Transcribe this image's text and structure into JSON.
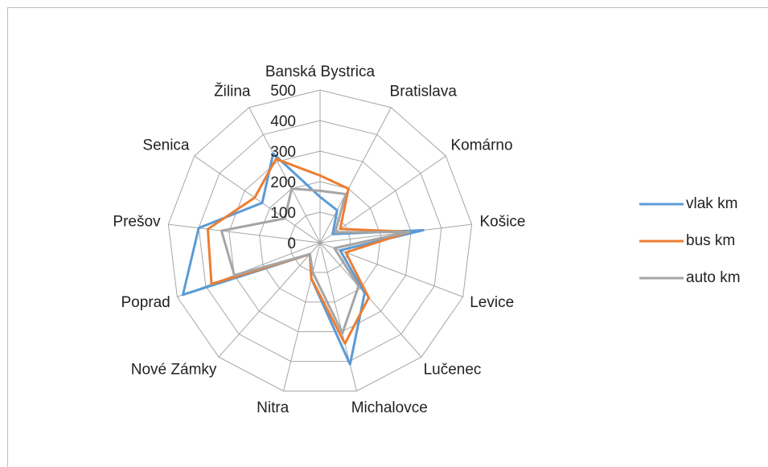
{
  "chart_data": {
    "type": "radar",
    "categories": [
      "Banská Bystrica",
      "Bratislava",
      "Komárno",
      "Košice",
      "Levice",
      "Lučenec",
      "Michalovce",
      "Nitra",
      "Nové Zámky",
      "Poprad",
      "Prešov",
      "Senica",
      "Žilina"
    ],
    "series": [
      {
        "name": "vlak km",
        "color": "#5b9bd5",
        "values": [
          150,
          120,
          50,
          340,
          70,
          220,
          410,
          120,
          50,
          480,
          400,
          230,
          330
        ]
      },
      {
        "name": "bus km",
        "color": "#ed7d31",
        "values": [
          220,
          200,
          80,
          295,
          90,
          240,
          340,
          120,
          50,
          380,
          370,
          260,
          310
        ]
      },
      {
        "name": "auto km",
        "color": "#a5a5a5",
        "values": [
          170,
          180,
          60,
          295,
          50,
          190,
          305,
          100,
          50,
          300,
          325,
          140,
          200
        ]
      }
    ],
    "rlim": [
      0,
      500
    ],
    "rticks": [
      0,
      100,
      200,
      300,
      400,
      500
    ],
    "grid": true,
    "legend": "right"
  }
}
